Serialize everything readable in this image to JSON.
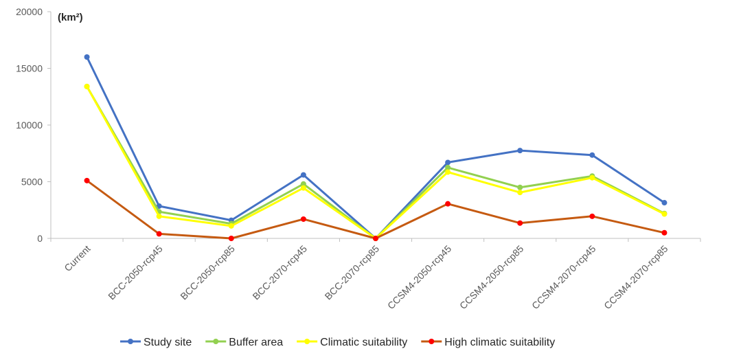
{
  "chart_data": {
    "type": "line",
    "title": "",
    "xlabel": "",
    "ylabel": "",
    "unit_label": "(km²)",
    "ylim": [
      0,
      20000
    ],
    "yticks": [
      0,
      5000,
      10000,
      15000,
      20000
    ],
    "grid": false,
    "legend_position": "bottom",
    "categories": [
      "Current",
      "BCC-2050-rcp45",
      "BCC-2050-rcp85",
      "BCC-2070-rcp45",
      "BCC-2070-rcp85",
      "CCSM4-2050-rcp45",
      "CCSM4-2050-rcp85",
      "CCSM4-2070-rcp45",
      "CCSM4-2070-rcp85"
    ],
    "series": [
      {
        "name": "Study site",
        "color": "#4472C4",
        "values": [
          16000,
          2850,
          1600,
          5600,
          0,
          6700,
          7750,
          7350,
          3150
        ]
      },
      {
        "name": "Buffer area",
        "color": "#92D050",
        "values": [
          13400,
          2350,
          1300,
          4800,
          0,
          6250,
          4500,
          5500,
          2200
        ]
      },
      {
        "name": "Climatic suitability",
        "color": "#FFFF00",
        "values": [
          13400,
          1950,
          1100,
          4450,
          0,
          5850,
          4050,
          5350,
          2150
        ]
      },
      {
        "name": "High climatic suitability",
        "color": "#C55A11",
        "marker_color": "#FF0000",
        "values": [
          5100,
          400,
          0,
          1700,
          0,
          3050,
          1350,
          1950,
          500
        ]
      }
    ]
  }
}
